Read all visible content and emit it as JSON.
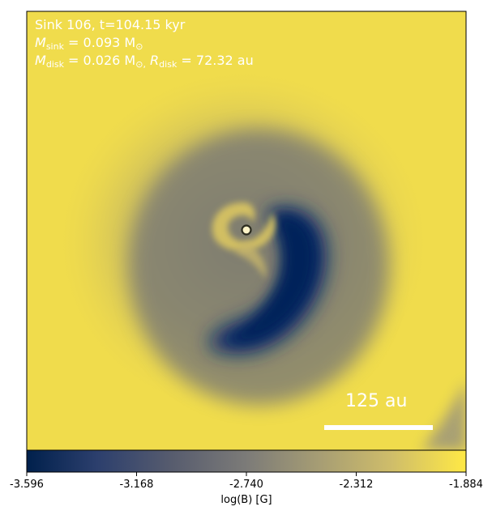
{
  "annotations": {
    "title": "Sink 106, t=104.15 kyr",
    "sink_sym": "M",
    "sink_sub": "sink",
    "sink_val": "= 0.093 M",
    "sink_unit_sub": "⊙",
    "disk_sym": "M",
    "disk_sub": "disk",
    "disk_val": "= 0.026 M",
    "disk_unit_sub": "⊙,",
    "rdisk_sym": "R",
    "rdisk_sub": "disk",
    "rdisk_val": "= 72.32 au"
  },
  "scalebar": {
    "label": "125 au"
  },
  "colorbar": {
    "label": "log(B) [G]",
    "ticks": [
      "-3.596",
      "-3.168",
      "-2.740",
      "-2.312",
      "-1.884"
    ],
    "min": -3.596,
    "max": -1.884,
    "colormap_stops": [
      "#00204c",
      "#2c3f6d",
      "#575c6e",
      "#7c7b78",
      "#a59c74",
      "#cfbd6a",
      "#ffe945"
    ]
  },
  "colors": {
    "background_yellow": "#f2dd48",
    "deep_blue": "#0b2a66",
    "sink_marker": "#fff4c8"
  }
}
